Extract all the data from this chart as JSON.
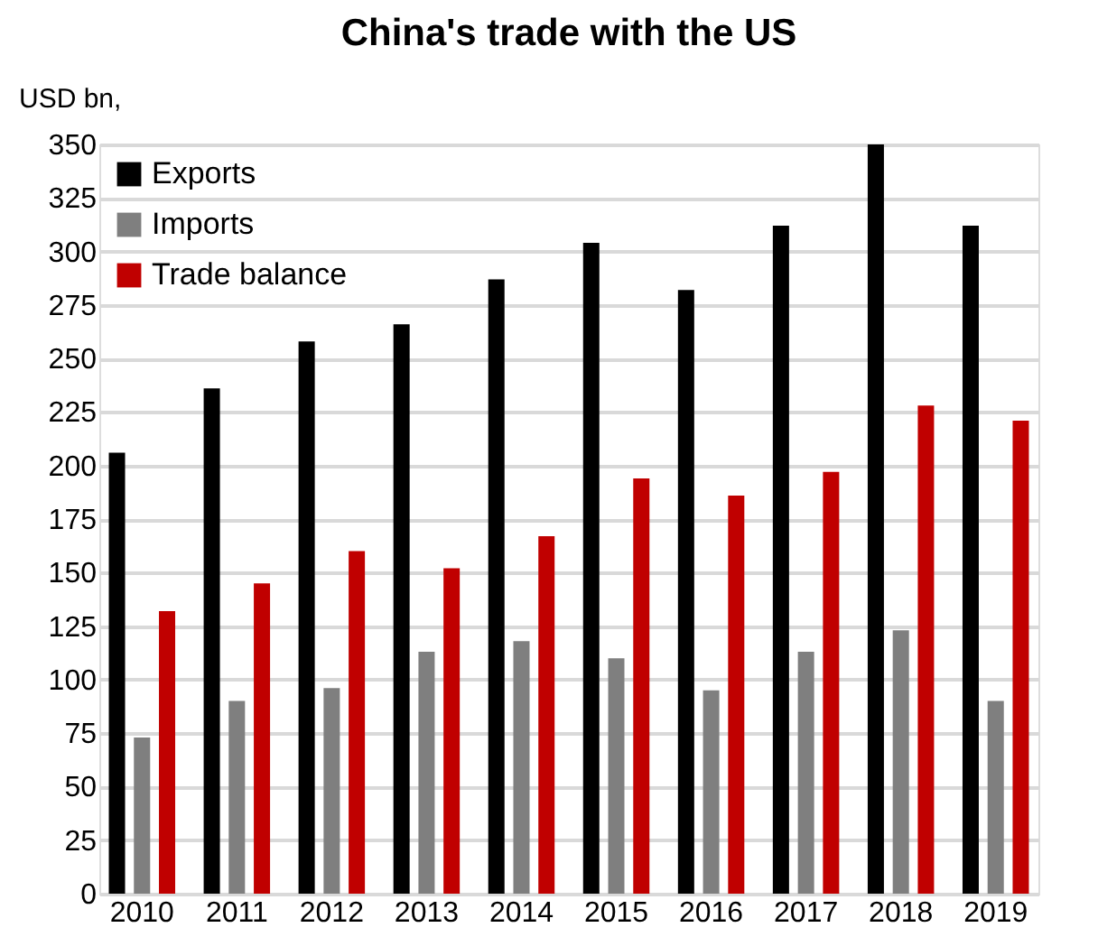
{
  "chart_data": {
    "type": "bar",
    "title": "China's trade with the US",
    "ylabel": "USD bn,",
    "categories": [
      "2010",
      "2011",
      "2012",
      "2013",
      "2014",
      "2015",
      "2016",
      "2017",
      "2018",
      "2019"
    ],
    "series": [
      {
        "name": "Exports",
        "color": "#000000",
        "values": [
          206,
          236,
          258,
          266,
          287,
          304,
          282,
          312,
          350,
          312
        ]
      },
      {
        "name": "Imports",
        "color": "#7f7f7f",
        "values": [
          73,
          90,
          96,
          113,
          118,
          110,
          95,
          113,
          123,
          90
        ]
      },
      {
        "name": "Trade balance",
        "color": "#c00000",
        "values": [
          132,
          145,
          160,
          152,
          167,
          194,
          186,
          197,
          228,
          221
        ]
      }
    ],
    "ylim": [
      0,
      350
    ],
    "yticks": [
      0,
      25,
      50,
      75,
      100,
      125,
      150,
      175,
      200,
      225,
      250,
      275,
      300,
      325,
      350
    ],
    "grid": "y",
    "legend": "top left"
  }
}
